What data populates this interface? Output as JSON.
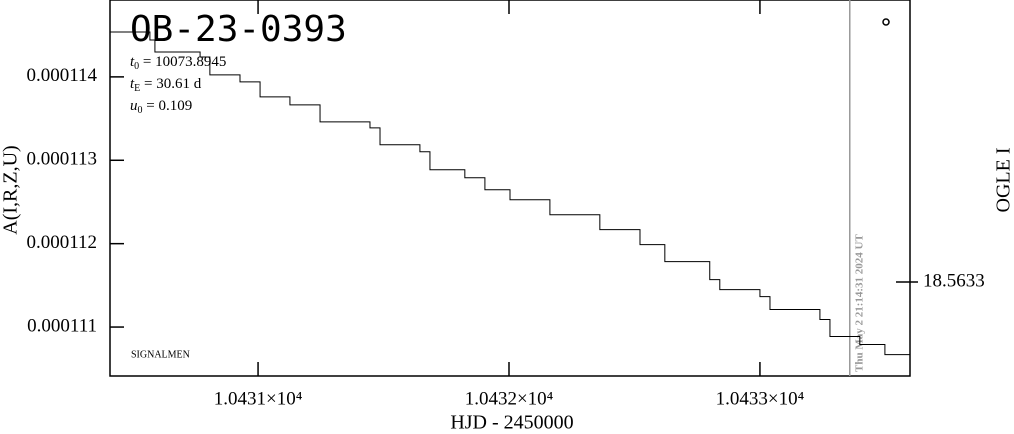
{
  "chart_data": {
    "type": "line",
    "title": "OB-23-0393",
    "params": [
      {
        "symbol": "t",
        "sub": "0",
        "text": " = 10073.8945"
      },
      {
        "symbol": "t",
        "sub": "E",
        "text": " = 30.61  d"
      },
      {
        "symbol": "u",
        "sub": "0",
        "text": " = 0.109"
      }
    ],
    "annotation": "SIGNALMEN",
    "x_label": "HJD - 2450000",
    "y_label": "A(I,R,Z,U)",
    "y2_label": "OGLE I",
    "marker_line": {
      "x": 10433.358,
      "label": "Thu May  2 21:14:31 2024 UT",
      "color": "#999999"
    },
    "xlim": [
      10430.41,
      10433.598
    ],
    "xticks": [
      {
        "value": 10431,
        "label": "1.0431×10⁴"
      },
      {
        "value": 10432,
        "label": "1.0432×10⁴"
      },
      {
        "value": 10433,
        "label": "1.0433×10⁴"
      }
    ],
    "ylim": [
      0.000110413,
      0.000114922
    ],
    "yticks": [
      0.000111,
      0.000112,
      0.000113,
      0.000114
    ],
    "y2lim": [
      18.6,
      18.4532
    ],
    "y2ticks": [
      18.5633
    ],
    "series": [
      {
        "color": "#000000",
        "x": [
          10430.41,
          10430.569,
          10430.589,
          10430.769,
          10430.808,
          10430.928,
          10431.008,
          10431.127,
          10431.247,
          10431.446,
          10431.486,
          10431.645,
          10431.685,
          10431.824,
          10431.904,
          10432.004,
          10432.163,
          10432.362,
          10432.522,
          10432.621,
          10432.8,
          10432.84,
          10433.0,
          10433.04,
          10433.239,
          10433.279,
          10433.398,
          10433.498,
          10433.598
        ],
        "values": [
          0.000114539,
          0.000114443,
          0.000114299,
          0.000114239,
          0.000114024,
          0.00011394,
          0.00011376,
          0.000113665,
          0.000113461,
          0.000113389,
          0.000113186,
          0.000113102,
          0.000112886,
          0.00011279,
          0.000112647,
          0.000112527,
          0.000112347,
          0.000112168,
          0.000111988,
          0.000111784,
          0.000111569,
          0.000111449,
          0.000111365,
          0.00011121,
          0.00011109,
          0.000110886,
          0.00011079,
          0.00011067,
          0.000110587
        ]
      }
    ]
  }
}
